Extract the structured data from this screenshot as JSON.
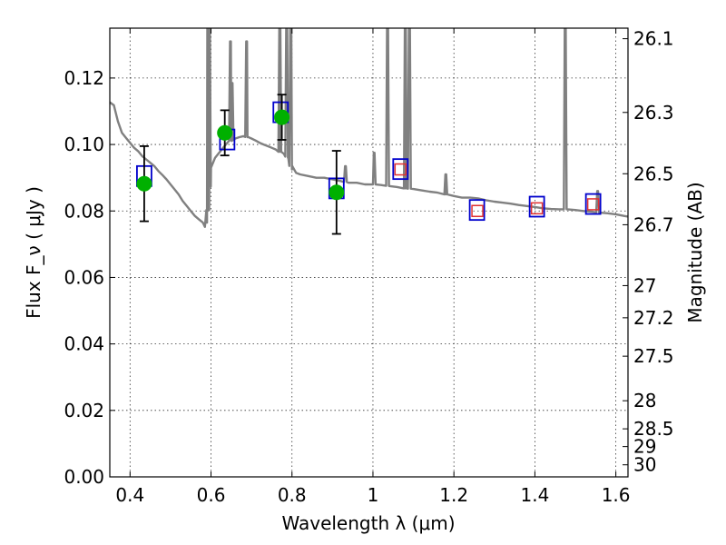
{
  "chart_data": {
    "type": "scatter",
    "xlabel": "Wavelength  λ (μm)",
    "ylabel": "Flux  F_ν  ( μJy )",
    "y2label": "Magnitude (AB)",
    "xlim": [
      0.35,
      1.63
    ],
    "ylim": [
      0.0,
      0.135
    ],
    "x_ticks": [
      0.4,
      0.6,
      0.8,
      1.0,
      1.2,
      1.4,
      1.6
    ],
    "x_tick_labels": [
      "0.4",
      "0.6",
      "0.8",
      "1",
      "1.2",
      "1.4",
      "1.6"
    ],
    "y_ticks": [
      0.0,
      0.02,
      0.04,
      0.06,
      0.08,
      0.1,
      0.12
    ],
    "y_tick_labels": [
      "0.00",
      "0.02",
      "0.04",
      "0.06",
      "0.08",
      "0.10",
      "0.12"
    ],
    "mag_ticks": [
      "26.1",
      "26.3",
      "26.5",
      "26.7",
      "27",
      "27.2",
      "27.5",
      "28",
      "28.5",
      "29",
      "30"
    ],
    "grid": true,
    "colors": {
      "model": "#808080",
      "observed": "#00b000",
      "errorbar": "#000000",
      "model_box": "#0000cc",
      "predicted": "#e03030"
    },
    "model_spectrum": [
      [
        0.35,
        0.1127
      ],
      [
        0.36,
        0.1118
      ],
      [
        0.37,
        0.107
      ],
      [
        0.38,
        0.1035
      ],
      [
        0.39,
        0.102
      ],
      [
        0.4,
        0.1005
      ],
      [
        0.41,
        0.099
      ],
      [
        0.42,
        0.098
      ],
      [
        0.43,
        0.0965
      ],
      [
        0.44,
        0.0955
      ],
      [
        0.45,
        0.0945
      ],
      [
        0.46,
        0.0935
      ],
      [
        0.47,
        0.092
      ],
      [
        0.48,
        0.0908
      ],
      [
        0.49,
        0.0895
      ],
      [
        0.5,
        0.088
      ],
      [
        0.51,
        0.0865
      ],
      [
        0.52,
        0.085
      ],
      [
        0.53,
        0.083
      ],
      [
        0.54,
        0.0815
      ],
      [
        0.55,
        0.08
      ],
      [
        0.56,
        0.0785
      ],
      [
        0.57,
        0.0775
      ],
      [
        0.58,
        0.0765
      ],
      [
        0.585,
        0.0752
      ],
      [
        0.59,
        0.0765
      ],
      [
        0.595,
        0.086
      ],
      [
        0.6,
        0.093
      ],
      [
        0.61,
        0.096
      ],
      [
        0.62,
        0.0975
      ],
      [
        0.63,
        0.099
      ],
      [
        0.64,
        0.1005
      ],
      [
        0.65,
        0.1012
      ],
      [
        0.66,
        0.1018
      ],
      [
        0.67,
        0.1022
      ],
      [
        0.68,
        0.1025
      ],
      [
        0.69,
        0.1022
      ],
      [
        0.7,
        0.1018
      ],
      [
        0.71,
        0.1012
      ],
      [
        0.72,
        0.1005
      ],
      [
        0.73,
        0.1
      ],
      [
        0.74,
        0.0995
      ],
      [
        0.75,
        0.099
      ],
      [
        0.76,
        0.0985
      ],
      [
        0.77,
        0.0978
      ],
      [
        0.78,
        0.0972
      ],
      [
        0.79,
        0.096
      ],
      [
        0.8,
        0.0925
      ],
      [
        0.81,
        0.0915
      ],
      [
        0.82,
        0.091
      ],
      [
        0.84,
        0.0905
      ],
      [
        0.86,
        0.09
      ],
      [
        0.88,
        0.09
      ],
      [
        0.9,
        0.0895
      ],
      [
        0.92,
        0.089
      ],
      [
        0.94,
        0.0885
      ],
      [
        0.96,
        0.0885
      ],
      [
        0.98,
        0.088
      ],
      [
        1.0,
        0.088
      ],
      [
        1.02,
        0.0878
      ],
      [
        1.04,
        0.0875
      ],
      [
        1.06,
        0.0872
      ],
      [
        1.08,
        0.0868
      ],
      [
        1.1,
        0.0866
      ],
      [
        1.12,
        0.0862
      ],
      [
        1.14,
        0.0858
      ],
      [
        1.16,
        0.0855
      ],
      [
        1.18,
        0.085
      ],
      [
        1.2,
        0.0845
      ],
      [
        1.22,
        0.084
      ],
      [
        1.24,
        0.084
      ],
      [
        1.26,
        0.0838
      ],
      [
        1.28,
        0.0832
      ],
      [
        1.3,
        0.0828
      ],
      [
        1.32,
        0.0825
      ],
      [
        1.34,
        0.0822
      ],
      [
        1.36,
        0.0818
      ],
      [
        1.38,
        0.0815
      ],
      [
        1.4,
        0.0812
      ],
      [
        1.42,
        0.0808
      ],
      [
        1.44,
        0.0806
      ],
      [
        1.46,
        0.0805
      ],
      [
        1.48,
        0.0805
      ],
      [
        1.5,
        0.0803
      ],
      [
        1.52,
        0.08
      ],
      [
        1.54,
        0.0798
      ],
      [
        1.56,
        0.0795
      ],
      [
        1.58,
        0.0793
      ],
      [
        1.6,
        0.079
      ],
      [
        1.62,
        0.0785
      ],
      [
        1.63,
        0.0783
      ]
    ],
    "emission_lines": [
      {
        "x": 0.592,
        "peak": 0.14
      },
      {
        "x": 0.596,
        "peak": 0.14
      },
      {
        "x": 0.648,
        "peak": 0.131
      },
      {
        "x": 0.652,
        "peak": 0.1185
      },
      {
        "x": 0.688,
        "peak": 0.131
      },
      {
        "x": 0.77,
        "peak": 0.14
      },
      {
        "x": 0.787,
        "peak": 0.14
      },
      {
        "x": 0.797,
        "peak": 0.14
      },
      {
        "x": 0.932,
        "peak": 0.0935
      },
      {
        "x": 1.003,
        "peak": 0.0975
      },
      {
        "x": 1.036,
        "peak": 0.14
      },
      {
        "x": 1.08,
        "peak": 0.14
      },
      {
        "x": 1.09,
        "peak": 0.14
      },
      {
        "x": 1.18,
        "peak": 0.091
      },
      {
        "x": 1.475,
        "peak": 0.14
      },
      {
        "x": 1.555,
        "peak": 0.086
      }
    ],
    "observed_points": [
      {
        "x": 0.435,
        "y": 0.0882,
        "yerr": 0.0113
      },
      {
        "x": 0.634,
        "y": 0.1035,
        "yerr": 0.0068
      },
      {
        "x": 0.775,
        "y": 0.1082,
        "yerr": 0.0068
      },
      {
        "x": 0.91,
        "y": 0.0856,
        "yerr": 0.0125
      }
    ],
    "model_boxes": [
      {
        "x": 0.435,
        "y": 0.0905
      },
      {
        "x": 0.64,
        "y": 0.1015
      },
      {
        "x": 0.772,
        "y": 0.1097
      },
      {
        "x": 0.91,
        "y": 0.0868
      },
      {
        "x": 1.068,
        "y": 0.0926
      },
      {
        "x": 1.257,
        "y": 0.0803
      },
      {
        "x": 1.405,
        "y": 0.0813
      },
      {
        "x": 1.544,
        "y": 0.0821
      }
    ],
    "predicted_points": [
      {
        "x": 1.068,
        "y": 0.0925
      },
      {
        "x": 1.258,
        "y": 0.08
      },
      {
        "x": 1.405,
        "y": 0.0808
      },
      {
        "x": 1.544,
        "y": 0.082
      }
    ]
  }
}
